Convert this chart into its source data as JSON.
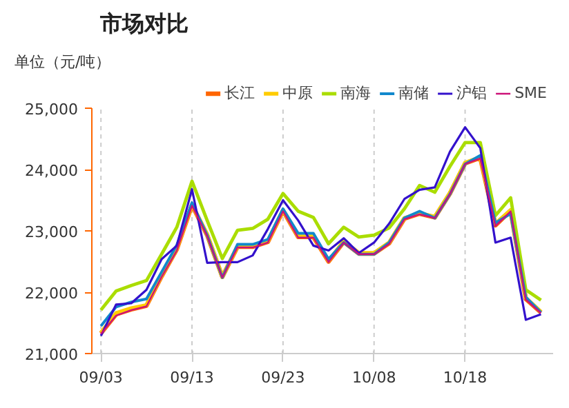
{
  "chart_data": {
    "type": "line",
    "title": "市场对比",
    "ylabel": "单位（元/吨）",
    "categories": [
      "09/03",
      null,
      null,
      null,
      null,
      null,
      "09/13",
      null,
      null,
      null,
      null,
      null,
      "09/23",
      null,
      null,
      null,
      null,
      null,
      "10/08",
      null,
      null,
      null,
      null,
      null,
      "10/18",
      null,
      null,
      null,
      null,
      null
    ],
    "ylim": [
      21000,
      25000
    ],
    "yticks": [
      {
        "value": 21000,
        "label": "21,000"
      },
      {
        "value": 22000,
        "label": "22,000"
      },
      {
        "value": 23000,
        "label": "23,000"
      },
      {
        "value": 24000,
        "label": "24,000"
      },
      {
        "value": 25000,
        "label": "25,000"
      }
    ],
    "grid": "x",
    "legend": "top",
    "marker": "none",
    "line_style": "solid",
    "series": [
      {
        "name": "长江",
        "color": "#ff6600",
        "values": [
          21330,
          21640,
          21720,
          21780,
          22260,
          22700,
          23420,
          22930,
          22250,
          22740,
          22740,
          22820,
          23330,
          22900,
          22900,
          22500,
          22820,
          22630,
          22630,
          22800,
          23200,
          23280,
          23220,
          23610,
          24100,
          24190,
          23090,
          23330,
          21890,
          21670
        ]
      },
      {
        "name": "中原",
        "color": "#ffcc00",
        "values": [
          21340,
          21660,
          21740,
          21790,
          22270,
          22710,
          23430,
          22940,
          22250,
          22750,
          22750,
          22830,
          23340,
          22910,
          22910,
          22510,
          22830,
          22640,
          22640,
          22810,
          23210,
          23290,
          23230,
          23620,
          24110,
          24200,
          23120,
          23340,
          21910,
          21680
        ]
      },
      {
        "name": "南海",
        "color": "#aadd00",
        "values": [
          21710,
          22020,
          22110,
          22190,
          22620,
          23060,
          23810,
          23170,
          22550,
          23010,
          23040,
          23190,
          23610,
          23320,
          23220,
          22790,
          23060,
          22900,
          22930,
          23050,
          23360,
          23740,
          23630,
          24050,
          24440,
          24440,
          23250,
          23540,
          22040,
          21870
        ]
      },
      {
        "name": "南储",
        "color": "#1188cc",
        "values": [
          21450,
          21760,
          21840,
          21890,
          22330,
          22770,
          23460,
          22930,
          22240,
          22780,
          22780,
          22860,
          23360,
          22960,
          22960,
          22540,
          22810,
          22620,
          22620,
          22810,
          23210,
          23320,
          23210,
          23600,
          24090,
          24230,
          23130,
          23280,
          21920,
          21670
        ]
      },
      {
        "name": "沪铝",
        "color": "#3311cc",
        "values": [
          21290,
          21800,
          21820,
          22040,
          22540,
          22760,
          23680,
          22480,
          22490,
          22490,
          22600,
          23030,
          23500,
          23170,
          22760,
          22680,
          22880,
          22640,
          22810,
          23120,
          23520,
          23670,
          23710,
          24290,
          24690,
          24350,
          22810,
          22890,
          21550,
          21640
        ]
      },
      {
        "name": "SME",
        "color": "#cc1177",
        "values": [
          21320,
          21620,
          21710,
          21770,
          22250,
          22680,
          23410,
          22920,
          22240,
          22730,
          22730,
          22810,
          23320,
          22890,
          22890,
          22490,
          22810,
          22620,
          22620,
          22790,
          23190,
          23270,
          23210,
          23600,
          24090,
          24180,
          23080,
          23320,
          21880,
          21660
        ]
      }
    ]
  }
}
